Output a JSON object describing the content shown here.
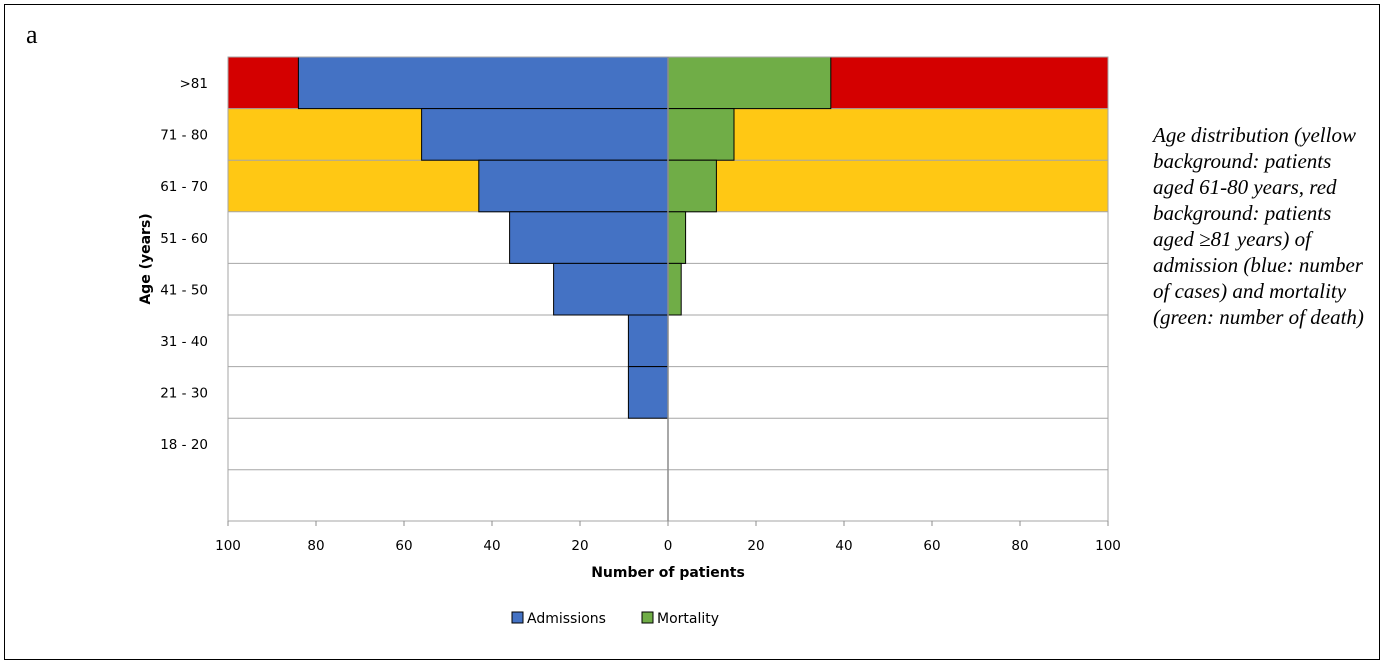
{
  "panel_label": "a",
  "caption": "Age distribution (yellow background: patients aged 61-80 years, red background: patients aged ≥81 years) of admission (blue: number of cases) and mortality (green: number of death)",
  "chart_data": {
    "type": "bar",
    "orientation": "horizontal",
    "layout": "population-pyramid",
    "categories": [
      ">81",
      "71 - 80",
      "61 - 70",
      "51 - 60",
      "41 - 50",
      "31 - 40",
      "21 - 30",
      "18 - 20"
    ],
    "series": [
      {
        "name": "Admissions",
        "side": "left",
        "color": "#4472C4",
        "values": [
          84,
          56,
          43,
          36,
          26,
          9,
          9,
          0
        ]
      },
      {
        "name": "Mortality",
        "side": "right",
        "color": "#70AD47",
        "values": [
          37,
          15,
          11,
          4,
          3,
          0,
          0,
          0
        ]
      }
    ],
    "background_bands": [
      {
        "categories": [
          ">81"
        ],
        "color": "#D40000"
      },
      {
        "categories": [
          "71 - 80",
          "61 - 70"
        ],
        "color": "#FFC814"
      }
    ],
    "xlabel": "Number of patients",
    "ylabel": "Age (years)",
    "xlim": [
      -100,
      100
    ],
    "x_ticks": [
      -100,
      -80,
      -60,
      -40,
      -20,
      0,
      20,
      40,
      60,
      80,
      100
    ],
    "x_tick_labels": [
      "100",
      "80",
      "60",
      "40",
      "20",
      "0",
      "20",
      "40",
      "60",
      "80",
      "100"
    ],
    "grid": true,
    "legend": "bottom"
  }
}
